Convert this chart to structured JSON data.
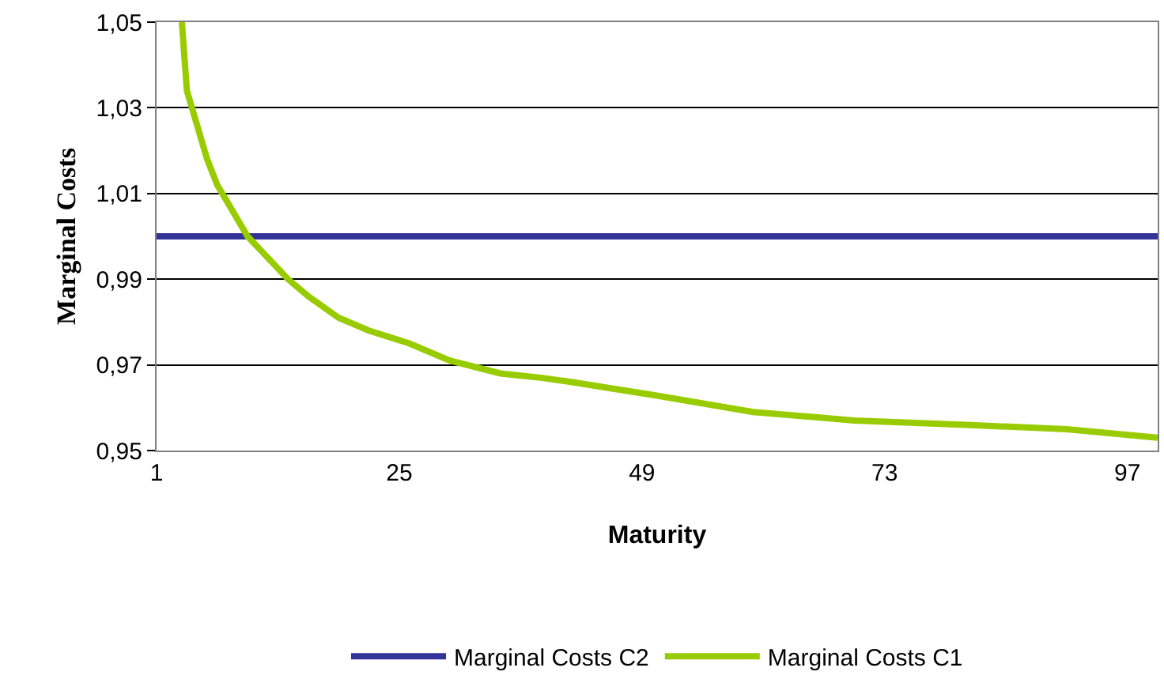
{
  "chart_data": {
    "type": "line",
    "xlabel": "Maturity",
    "ylabel": "Marginal Costs",
    "series": [
      {
        "name": "Marginal Costs C2",
        "color": "#333399",
        "x": [
          1,
          100
        ],
        "values": [
          1.0,
          1.0
        ]
      },
      {
        "name": "Marginal Costs C1",
        "color": "#99cc00",
        "x": [
          3.5,
          4,
          6,
          7,
          10,
          14,
          16,
          19,
          22,
          26,
          30,
          35,
          39,
          42,
          50,
          60,
          70,
          81,
          91,
          100
        ],
        "values": [
          1.05,
          1.034,
          1.018,
          1.012,
          1.0,
          0.99,
          0.986,
          0.981,
          0.978,
          0.975,
          0.971,
          0.968,
          0.967,
          0.966,
          0.963,
          0.959,
          0.957,
          0.956,
          0.955,
          0.953
        ]
      }
    ],
    "xlim": [
      1,
      100
    ],
    "xticks": [
      1,
      25,
      49,
      73,
      97
    ],
    "ylim": [
      0.95,
      1.05
    ],
    "yticks": [
      {
        "value": 0.95,
        "label": "0,95"
      },
      {
        "value": 0.97,
        "label": "0,97"
      },
      {
        "value": 0.99,
        "label": "0,99"
      },
      {
        "value": 1.01,
        "label": "1,01"
      },
      {
        "value": 1.03,
        "label": "1,03"
      },
      {
        "value": 1.05,
        "label": "1,05"
      }
    ],
    "grid": "y",
    "legend": "bottom",
    "marker": "none",
    "line_style": "solid"
  }
}
